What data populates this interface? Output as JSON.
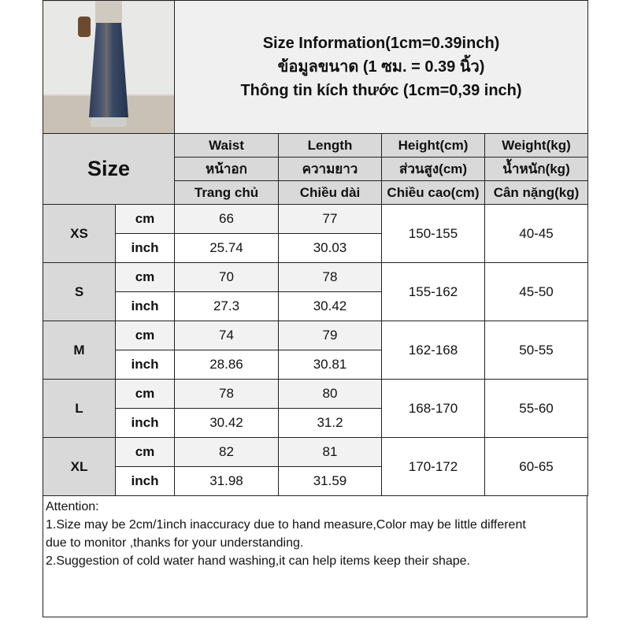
{
  "title_lines": [
    "Size Information(1cm=0.39inch)",
    "ข้อมูลขนาด (1 ซม. = 0.39 นิ้ว)",
    "Thông tin kích thước (1cm=0,39 inch)"
  ],
  "size_label": "Size",
  "header_rows": [
    [
      "Waist",
      "Length",
      "Height(cm)",
      "Weight(kg)"
    ],
    [
      "หน้าอก",
      "ความยาว",
      "ส่วนสูง(cm)",
      "น้ำหนัก(kg)"
    ],
    [
      "Trang chủ",
      "Chiều dài",
      "Chiều cao(cm)",
      "Cân nặng(kg)"
    ]
  ],
  "units": {
    "cm": "cm",
    "inch": "inch"
  },
  "sizes": [
    {
      "size": "XS",
      "cm": [
        "66",
        "77"
      ],
      "inch": [
        "25.74",
        "30.03"
      ],
      "height": "150-155",
      "weight": "40-45"
    },
    {
      "size": "S",
      "cm": [
        "70",
        "78"
      ],
      "inch": [
        "27.3",
        "30.42"
      ],
      "height": "155-162",
      "weight": "45-50"
    },
    {
      "size": "M",
      "cm": [
        "74",
        "79"
      ],
      "inch": [
        "28.86",
        "30.81"
      ],
      "height": "162-168",
      "weight": "50-55"
    },
    {
      "size": "L",
      "cm": [
        "78",
        "80"
      ],
      "inch": [
        "30.42",
        "31.2"
      ],
      "height": "168-170",
      "weight": "55-60"
    },
    {
      "size": "XL",
      "cm": [
        "82",
        "81"
      ],
      "inch": [
        "31.98",
        "31.59"
      ],
      "height": "170-172",
      "weight": "60-65"
    }
  ],
  "attention": [
    "Attention:",
    "1.Size may be 2cm/1inch inaccuracy due to hand measure,Color may be little different",
    "due to monitor ,thanks for your understanding.",
    "2.Suggestion of cold water hand washing,it can help items keep their shape."
  ]
}
